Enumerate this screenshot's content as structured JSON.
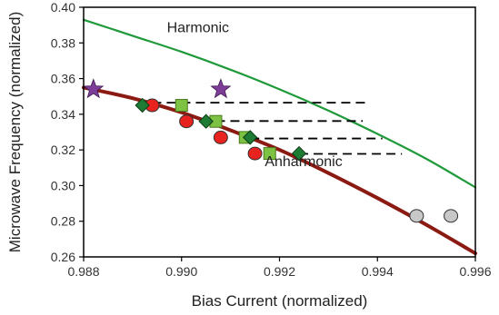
{
  "chart_data": {
    "type": "scatter",
    "title": "",
    "xlabel": "Bias Current  (normalized)",
    "ylabel": "Microwave Frequency  (normalized)",
    "xlim": [
      0.988,
      0.996
    ],
    "ylim": [
      0.26,
      0.4
    ],
    "xticks": [
      0.988,
      0.99,
      0.992,
      0.994,
      0.996
    ],
    "yticks": [
      0.26,
      0.28,
      0.3,
      0.32,
      0.34,
      0.36,
      0.38,
      0.4
    ],
    "xtick_labels": [
      "0.988",
      "0.990",
      "0.992",
      "0.994",
      "0.996"
    ],
    "ytick_labels": [
      "0.26",
      "0.28",
      "0.30",
      "0.32",
      "0.34",
      "0.36",
      "0.38",
      "0.40"
    ],
    "grid": false,
    "legend": "none",
    "curves": [
      {
        "label": "Harmonic",
        "color": "#1f9a3a",
        "x": [
          0.988,
          0.989,
          0.99,
          0.991,
          0.992,
          0.993,
          0.994,
          0.995,
          0.996
        ],
        "y": [
          0.393,
          0.384,
          0.375,
          0.365,
          0.354,
          0.342,
          0.329,
          0.315,
          0.299
        ]
      },
      {
        "label": "Anharmonic",
        "color": "#8b1a12",
        "x": [
          0.988,
          0.989,
          0.99,
          0.991,
          0.992,
          0.993,
          0.994,
          0.995,
          0.996
        ],
        "y": [
          0.355,
          0.349,
          0.341,
          0.331,
          0.32,
          0.307,
          0.293,
          0.278,
          0.262
        ]
      }
    ],
    "series": [
      {
        "marker": "star",
        "color": "#7d3c98",
        "x": [
          0.9882,
          0.9908
        ],
        "y": [
          0.354,
          0.354
        ]
      },
      {
        "marker": "circle",
        "color": "#e8221f",
        "x": [
          0.9894,
          0.9901,
          0.9908,
          0.9915
        ],
        "y": [
          0.345,
          0.336,
          0.327,
          0.318
        ]
      },
      {
        "marker": "square",
        "color": "#7dc242",
        "x": [
          0.99,
          0.9907,
          0.9913,
          0.9918
        ],
        "y": [
          0.345,
          0.336,
          0.327,
          0.318
        ]
      },
      {
        "marker": "diamond",
        "color": "#1e7b34",
        "x": [
          0.9892,
          0.9905,
          0.9914,
          0.9924
        ],
        "y": [
          0.345,
          0.336,
          0.327,
          0.318
        ]
      },
      {
        "marker": "circle",
        "color": "#c8c8c8",
        "x": [
          0.9948,
          0.9955
        ],
        "y": [
          0.283,
          0.283
        ]
      }
    ],
    "dashed_lines": [
      {
        "x": [
          0.9894,
          0.9938
        ],
        "y": [
          0.3465,
          0.3465
        ]
      },
      {
        "x": [
          0.9907,
          0.9937
        ],
        "y": [
          0.3362,
          0.3362
        ]
      },
      {
        "x": [
          0.9914,
          0.9941
        ],
        "y": [
          0.3264,
          0.3264
        ]
      },
      {
        "x": [
          0.9924,
          0.9945
        ],
        "y": [
          0.3178,
          0.3178
        ]
      }
    ],
    "annotations": [
      {
        "text": "Harmonic",
        "x": 0.9897,
        "y": 0.386
      },
      {
        "text": "Anharmonic",
        "x": 0.9917,
        "y": 0.311
      }
    ]
  }
}
